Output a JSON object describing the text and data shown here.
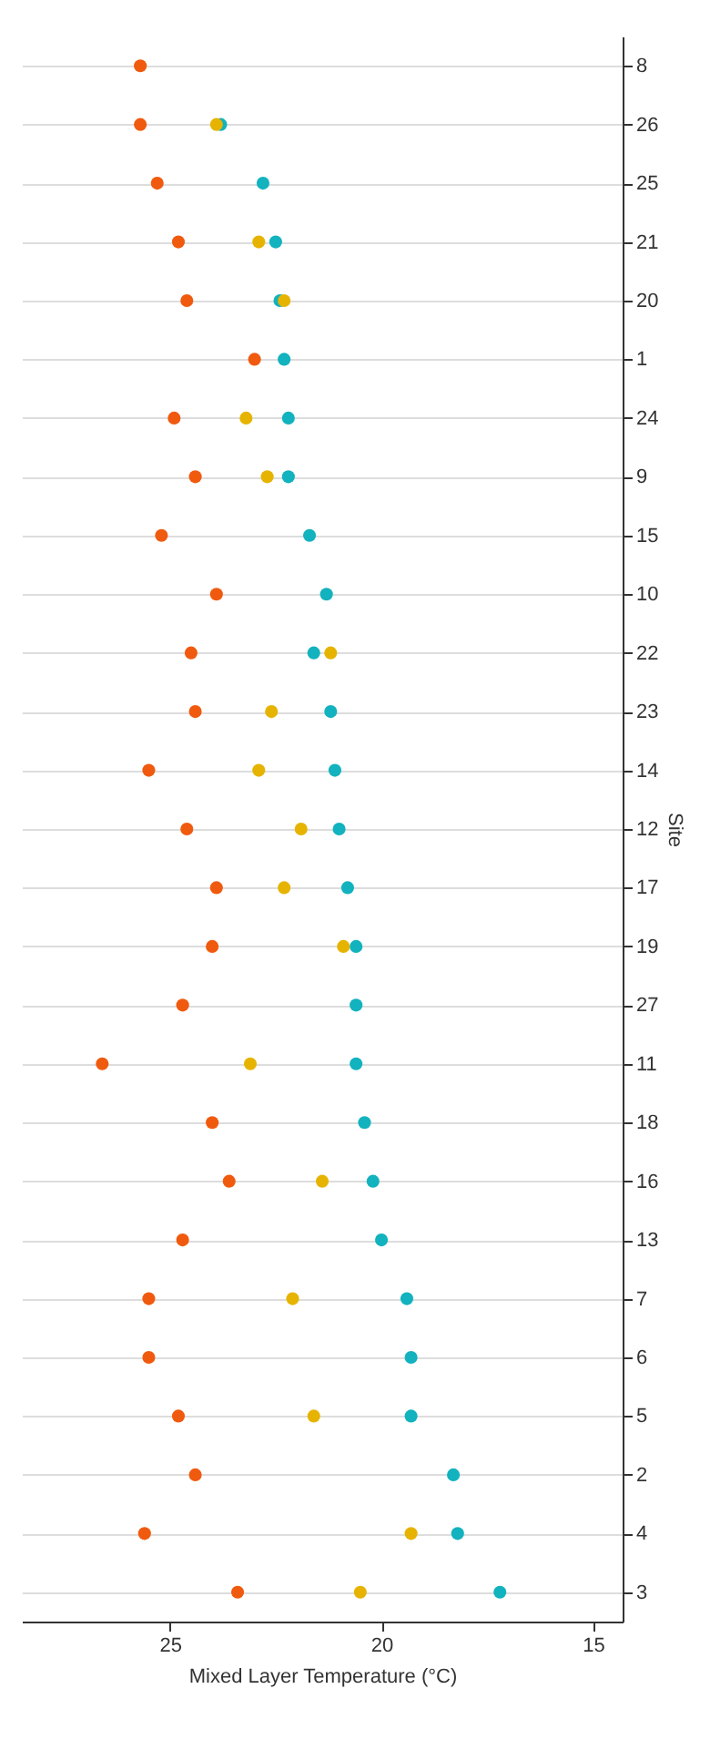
{
  "chart_data": {
    "type": "scatter",
    "orientation": "horizontal",
    "xlabel": "Mixed Layer Temperature (°C)",
    "ylabel": "Site",
    "categories": [
      "8",
      "26",
      "25",
      "21",
      "20",
      "1",
      "24",
      "9",
      "15",
      "10",
      "22",
      "23",
      "14",
      "12",
      "17",
      "19",
      "27",
      "11",
      "18",
      "16",
      "13",
      "7",
      "6",
      "5",
      "2",
      "4",
      "3"
    ],
    "series": [
      {
        "color": "#f05a0f",
        "values": [
          25.7,
          25.7,
          25.3,
          24.8,
          24.6,
          23.0,
          24.9,
          24.4,
          25.2,
          23.9,
          24.5,
          24.4,
          25.5,
          24.6,
          23.9,
          24.0,
          24.7,
          26.6,
          24.0,
          23.6,
          24.7,
          25.5,
          25.5,
          24.8,
          24.4,
          25.6,
          23.4
        ]
      },
      {
        "color": "#e6b400",
        "values": [
          null,
          23.9,
          null,
          22.9,
          22.3,
          null,
          23.2,
          22.7,
          null,
          null,
          21.2,
          22.6,
          22.9,
          21.9,
          22.3,
          20.9,
          null,
          23.1,
          null,
          21.4,
          null,
          22.1,
          null,
          21.6,
          null,
          19.3,
          20.5
        ]
      },
      {
        "color": "#12b2be",
        "values": [
          null,
          23.8,
          22.8,
          22.5,
          22.4,
          22.3,
          22.2,
          22.2,
          21.7,
          21.3,
          21.6,
          21.2,
          21.1,
          21.0,
          20.8,
          20.6,
          20.6,
          20.6,
          20.4,
          20.2,
          20.0,
          19.4,
          19.3,
          19.3,
          18.3,
          18.2,
          17.2
        ]
      }
    ],
    "xlim": [
      28.5,
      14.3
    ],
    "xticks": [
      25,
      20,
      15
    ],
    "grid": "y",
    "marker": "circle"
  }
}
